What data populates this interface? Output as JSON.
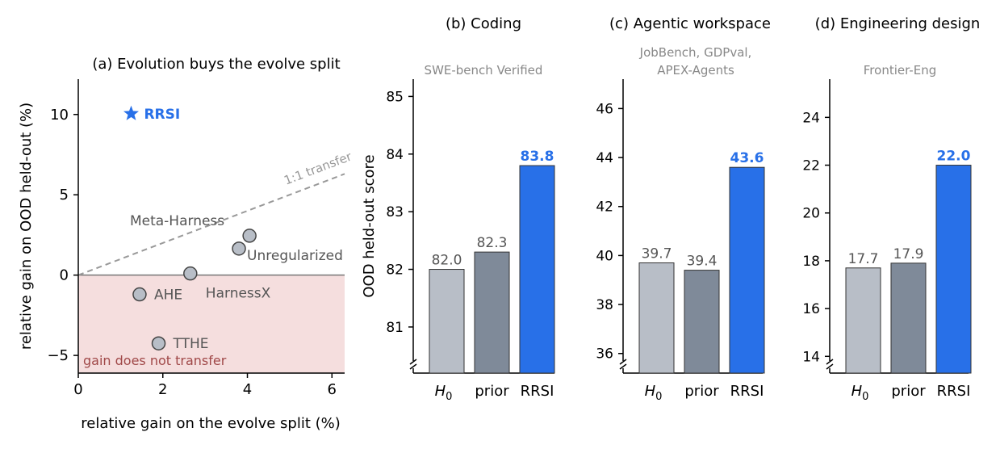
{
  "colors": {
    "rrsi": "#2870e8",
    "h0": "#b8bec7",
    "prior": "#7f8a99",
    "marker_fill": "#b8bec7",
    "dashed": "#999999",
    "region": "#f5dede",
    "region_text": "#a04848",
    "subtitle": "#888888",
    "text": "#000000",
    "label": "#555555"
  },
  "chart_data": [
    {
      "type": "scatter",
      "title": "(a) Evolution buys the evolve split",
      "xlabel": "relative gain on the evolve split (%)",
      "ylabel": "relative gain on OOD held-out (%)",
      "xlim": [
        0,
        6.3
      ],
      "ylim": [
        -6.1,
        12.2
      ],
      "xticks": [
        0,
        2,
        4,
        6
      ],
      "yticks": [
        -5,
        0,
        5,
        10
      ],
      "grid": false,
      "points": [
        {
          "label": "RRSI",
          "x": 1.25,
          "y": 10.05,
          "marker": "star"
        },
        {
          "label": "Meta-Harness",
          "x": 4.05,
          "y": 2.45,
          "marker": "circle"
        },
        {
          "label": "Unregularized",
          "x": 3.8,
          "y": 1.65,
          "marker": "circle"
        },
        {
          "label": "HarnessX",
          "x": 2.65,
          "y": 0.1,
          "marker": "circle"
        },
        {
          "label": "AHE",
          "x": 1.45,
          "y": -1.2,
          "marker": "circle"
        },
        {
          "label": "TTHE",
          "x": 1.9,
          "y": -4.25,
          "marker": "circle"
        }
      ],
      "reference_line": {
        "label": "1:1 transfer",
        "slope": 1
      },
      "region_label": "gain does not transfer"
    },
    {
      "type": "bar",
      "title": "(b) Coding",
      "subtitle": "SWE-bench Verified",
      "ylabel": "OOD held-out score",
      "categories": [
        "H0",
        "prior",
        "RRSI"
      ],
      "values": [
        82.0,
        82.3,
        83.8
      ],
      "value_labels": [
        "82.0",
        "82.3",
        "83.8"
      ],
      "ylim": [
        80.2,
        85.3
      ],
      "yticks": [
        81,
        82,
        83,
        84,
        85
      ]
    },
    {
      "type": "bar",
      "title": "(c) Agentic workspace",
      "subtitle": [
        "JobBench, GDPval,",
        "APEX-Agents"
      ],
      "categories": [
        "H0",
        "prior",
        "RRSI"
      ],
      "values": [
        39.7,
        39.4,
        43.6
      ],
      "value_labels": [
        "39.7",
        "39.4",
        "43.6"
      ],
      "ylim": [
        35.2,
        47.2
      ],
      "yticks": [
        36,
        38,
        40,
        42,
        44,
        46
      ]
    },
    {
      "type": "bar",
      "title": "(d) Engineering design",
      "subtitle": "Frontier-Eng",
      "categories": [
        "H0",
        "prior",
        "RRSI"
      ],
      "values": [
        17.7,
        17.9,
        22.0
      ],
      "value_labels": [
        "17.7",
        "17.9",
        "22.0"
      ],
      "ylim": [
        13.3,
        25.6
      ],
      "yticks": [
        14,
        16,
        18,
        20,
        22,
        24
      ]
    }
  ]
}
